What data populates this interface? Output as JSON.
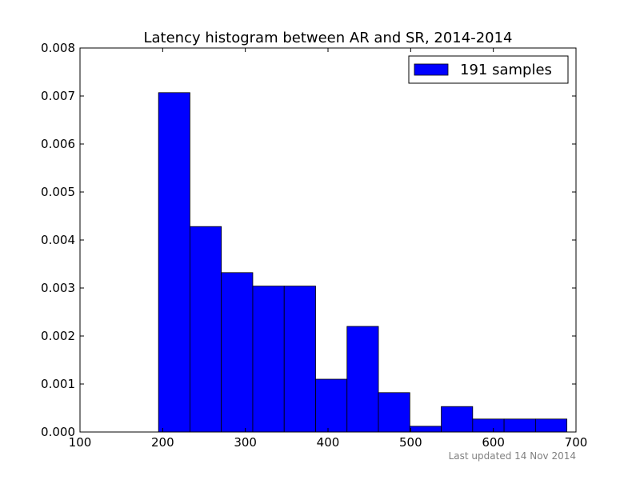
{
  "chart_data": {
    "type": "bar",
    "title": "Latency histogram between AR and SR, 2014-2014",
    "xlim": [
      100,
      700
    ],
    "ylim": [
      0,
      0.008
    ],
    "xticks": [
      100,
      200,
      300,
      400,
      500,
      600,
      700
    ],
    "xtick_labels": [
      "100",
      "200",
      "300",
      "400",
      "500",
      "600",
      "700"
    ],
    "yticks": [
      0.0,
      0.001,
      0.002,
      0.003,
      0.004,
      0.005,
      0.006,
      0.007,
      0.008
    ],
    "ytick_labels": [
      "0.000",
      "0.001",
      "0.002",
      "0.003",
      "0.004",
      "0.005",
      "0.006",
      "0.007",
      "0.008"
    ],
    "bin_edges": [
      195,
      233,
      271,
      309,
      347,
      385,
      423,
      461,
      499,
      537,
      575,
      613,
      651,
      689
    ],
    "series": [
      {
        "name": "191 samples",
        "values": [
          0.00707,
          0.00428,
          0.00332,
          0.00304,
          0.00304,
          0.0011,
          0.0022,
          0.00082,
          0.00012,
          0.00053,
          0.00027,
          0.00027,
          0.00027
        ]
      }
    ],
    "legend_position": "top-right",
    "grid": false
  },
  "colors": {
    "bar_fill": "#0000ff",
    "bar_edge": "#000000",
    "footnote": "#808080"
  },
  "footnote": "Last updated 14 Nov 2014"
}
